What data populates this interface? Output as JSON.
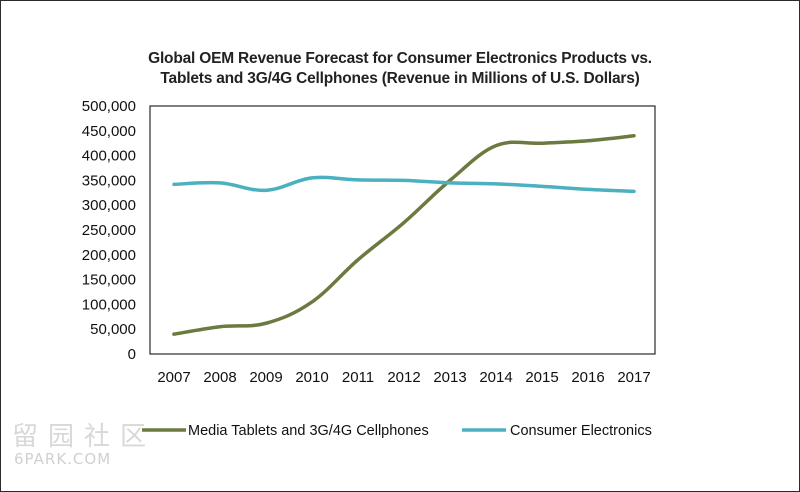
{
  "chart_data": {
    "type": "line",
    "title_line1": "Global OEM Revenue Forecast for Consumer Electronics Products vs.",
    "title_line2": "Tablets and 3G/4G Cellphones (Revenue in Millions of U.S. Dollars)",
    "x": [
      "2007",
      "2008",
      "2009",
      "2010",
      "2011",
      "2012",
      "2013",
      "2014",
      "2015",
      "2016",
      "2017"
    ],
    "y_ticks": [
      "0",
      "50,000",
      "100,000",
      "150,000",
      "200,000",
      "250,000",
      "300,000",
      "350,000",
      "400,000",
      "450,000",
      "500,000"
    ],
    "ylim": [
      0,
      500000
    ],
    "grid": false,
    "legend_position": "bottom",
    "series": [
      {
        "name": "Media Tablets and 3G/4G Cellphones",
        "color": "#6b7a3e",
        "values": [
          40000,
          55000,
          62000,
          105000,
          190000,
          265000,
          350000,
          420000,
          425000,
          430000,
          440000
        ]
      },
      {
        "name": "Consumer Electronics",
        "color": "#4bb0bf",
        "values": [
          342000,
          345000,
          330000,
          355000,
          351000,
          350000,
          345000,
          343000,
          338000,
          332000,
          328000
        ]
      }
    ]
  },
  "watermark": {
    "cjk": "留园社区",
    "url": "6PARK.COM"
  }
}
